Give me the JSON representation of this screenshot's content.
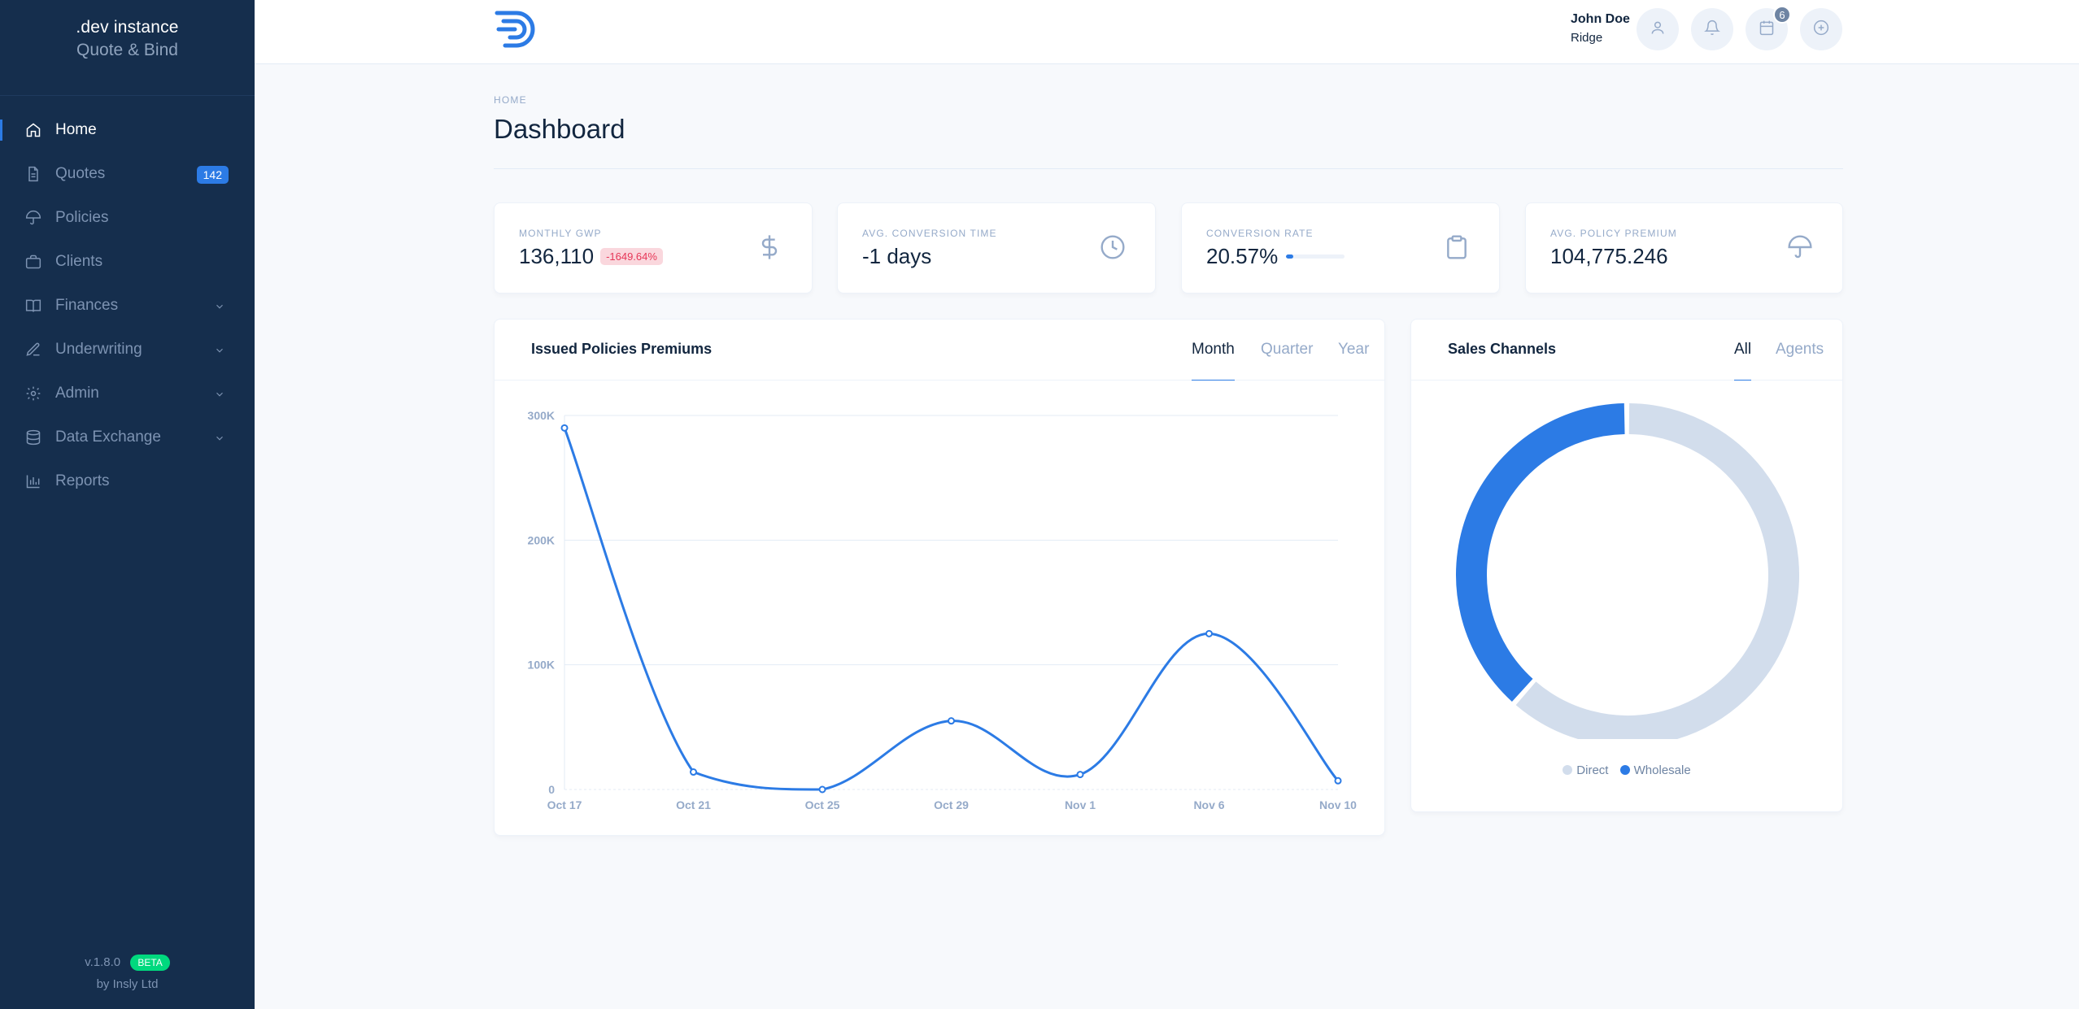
{
  "app": {
    "instance": ".dev instance",
    "product": "Quote & Bind"
  },
  "sidebar": {
    "items": [
      {
        "label": "Home",
        "icon": "home-icon",
        "active": true
      },
      {
        "label": "Quotes",
        "icon": "file-icon",
        "badge": "142"
      },
      {
        "label": "Policies",
        "icon": "umbrella-icon"
      },
      {
        "label": "Clients",
        "icon": "briefcase-icon"
      },
      {
        "label": "Finances",
        "icon": "book-icon",
        "expandable": true
      },
      {
        "label": "Underwriting",
        "icon": "pen-icon",
        "expandable": true
      },
      {
        "label": "Admin",
        "icon": "gear-icon",
        "expandable": true
      },
      {
        "label": "Data Exchange",
        "icon": "database-icon",
        "expandable": true
      },
      {
        "label": "Reports",
        "icon": "bar-chart-icon"
      }
    ],
    "footer": {
      "version": "v.1.8.0",
      "beta": "BETA",
      "by": "by Insly Ltd"
    }
  },
  "topbar": {
    "user_name": "John Doe",
    "user_org": "Ridge",
    "calendar_badge": "6"
  },
  "header": {
    "pretitle": "HOME",
    "title": "Dashboard"
  },
  "stats": [
    {
      "label": "MONTHLY GWP",
      "value": "136,110",
      "delta": "-1649.64%",
      "icon": "dollar-icon"
    },
    {
      "label": "AVG. CONVERSION TIME",
      "value": "-1 days",
      "icon": "clock-icon"
    },
    {
      "label": "CONVERSION RATE",
      "value": "20.57%",
      "progress": 0.2057,
      "icon": "clipboard-icon"
    },
    {
      "label": "AVG. POLICY PREMIUM",
      "value": "104,775.246",
      "icon": "umbrella-icon"
    }
  ],
  "colors": {
    "accent": "#2c7be5",
    "sidebar": "#152e4d",
    "muted": "#95aac9",
    "light": "#d2ddec"
  },
  "chart_data": [
    {
      "type": "line",
      "title": "Issued Policies Premiums",
      "tabs": [
        "Month",
        "Quarter",
        "Year"
      ],
      "active_tab": "Month",
      "x": [
        "Oct 17",
        "Oct 21",
        "Oct 25",
        "Oct 29",
        "Nov 1",
        "Nov 6",
        "Nov 10"
      ],
      "series": [
        {
          "values": [
            290000,
            14000,
            0,
            55000,
            12000,
            125000,
            7000
          ]
        }
      ],
      "y_ticks": [
        "0",
        "100K",
        "200K",
        "300K"
      ],
      "ylim": [
        0,
        300000
      ],
      "grid": true
    },
    {
      "type": "pie",
      "title": "Sales Channels",
      "tabs": [
        "All",
        "Agents"
      ],
      "active_tab": "All",
      "categories": [
        "Direct",
        "Wholesale"
      ],
      "values": [
        0.616,
        0.384
      ],
      "colors": [
        "#d2ddec",
        "#2c7be5"
      ],
      "legend": "bottom"
    }
  ]
}
